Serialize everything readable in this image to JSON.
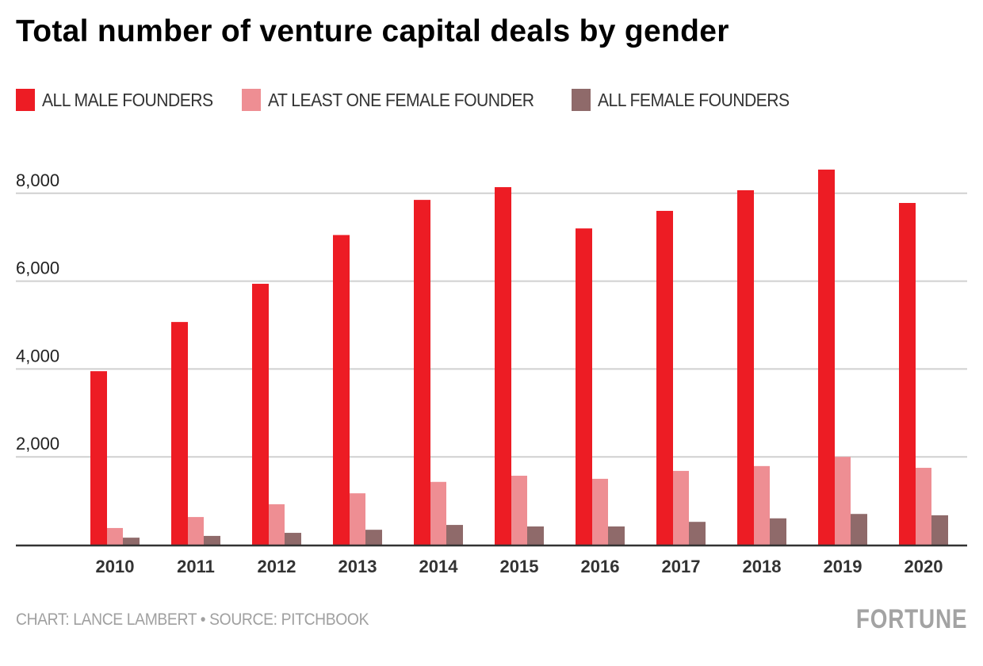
{
  "chart_data": {
    "type": "bar",
    "title": "Total number of venture capital deals by gender",
    "xlabel": "",
    "ylabel": "",
    "categories": [
      "2010",
      "2011",
      "2012",
      "2013",
      "2014",
      "2015",
      "2016",
      "2017",
      "2018",
      "2019",
      "2020"
    ],
    "series": [
      {
        "name": "ALL MALE FOUNDERS",
        "color": "#ed1c24",
        "values": [
          3950,
          5070,
          5940,
          7050,
          7850,
          8140,
          7200,
          7600,
          8070,
          8540,
          7780
        ]
      },
      {
        "name": "AT LEAST ONE FEMALE FOUNDER",
        "color": "#ee8e93",
        "values": [
          380,
          630,
          920,
          1170,
          1430,
          1570,
          1500,
          1680,
          1790,
          2000,
          1750
        ]
      },
      {
        "name": "ALL FEMALE FOUNDERS",
        "color": "#8f6a6a",
        "values": [
          160,
          200,
          270,
          340,
          450,
          415,
          415,
          520,
          600,
          700,
          670
        ]
      }
    ],
    "ylim": [
      0,
      8000
    ],
    "yticks": [
      2000,
      4000,
      6000,
      8000
    ],
    "ytick_labels": [
      "2,000",
      "4,000",
      "6,000",
      "8,000"
    ],
    "grid": true,
    "legend_position": "top-left"
  },
  "footer": {
    "credit": "CHART: LANCE LAMBERT • SOURCE: PITCHBOOK",
    "brand": "FORTUNE"
  },
  "colors": {
    "gridline": "#d0d0d0",
    "baseline": "#333333",
    "tick_text": "#222222",
    "year_text": "#333333"
  }
}
